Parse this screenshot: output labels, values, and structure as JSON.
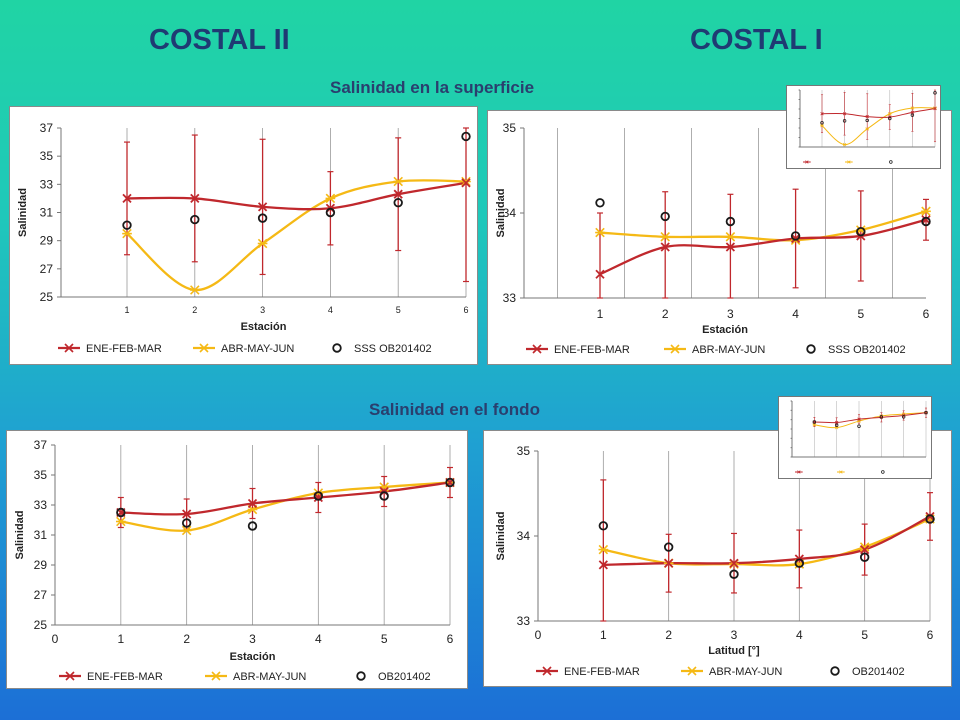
{
  "headings": {
    "left": "COSTAL II",
    "right": "COSTAL I",
    "surface": "Salinidad en la superficie",
    "bottom": "Salinidad en el fondo"
  },
  "colors": {
    "ene": "#c0282d",
    "abr": "#f5b915",
    "obs": "#1a1a1a",
    "errorbar": "#c0282d"
  },
  "chart_data": [
    {
      "type": "line",
      "xlabel": "Estación",
      "ylabel": "Salinidad",
      "x": [
        1,
        2,
        3,
        4,
        5,
        6
      ],
      "xticks": [
        "1",
        "2",
        "3",
        "4",
        "5",
        "6"
      ],
      "ylim": [
        25,
        37
      ],
      "yticks": [
        "25",
        "27",
        "29",
        "31",
        "33",
        "35",
        "37"
      ],
      "series": [
        {
          "name": "ENE-FEB-MAR",
          "values": [
            32.0,
            32.0,
            31.4,
            31.3,
            32.3,
            33.1
          ],
          "err": [
            4.0,
            4.5,
            4.8,
            2.6,
            4.0,
            7.0
          ]
        },
        {
          "name": "ABR-MAY-JUN",
          "values": [
            29.5,
            25.5,
            28.8,
            32.0,
            33.2,
            33.2
          ]
        },
        {
          "name": "SSS OB201402",
          "values": [
            30.1,
            30.5,
            30.6,
            31.0,
            31.7,
            36.4
          ]
        }
      ]
    },
    {
      "type": "line",
      "xlabel": "Estación",
      "ylabel": "Salinidad",
      "x": [
        1,
        2,
        3,
        4,
        5,
        6
      ],
      "xticks": [
        "1",
        "2",
        "3",
        "4",
        "5",
        "6"
      ],
      "ylim": [
        33,
        35
      ],
      "yticks": [
        "33",
        "34",
        "35"
      ],
      "series": [
        {
          "name": "ENE-FEB-MAR",
          "values": [
            33.28,
            33.6,
            33.6,
            33.7,
            33.73,
            33.92
          ],
          "err": [
            0.72,
            0.65,
            0.62,
            0.58,
            0.53,
            0.24
          ]
        },
        {
          "name": "ABR-MAY-JUN",
          "values": [
            33.77,
            33.72,
            33.72,
            33.68,
            33.8,
            34.02
          ]
        },
        {
          "name": "SSS OB201402",
          "values": [
            34.12,
            33.96,
            33.9,
            33.73,
            33.78,
            33.9
          ]
        }
      ]
    },
    {
      "type": "line",
      "xlabel": "Estación",
      "ylabel": "Salinidad",
      "x": [
        1,
        2,
        3,
        4,
        5,
        6
      ],
      "xticks": [
        "0",
        "1",
        "2",
        "3",
        "4",
        "5",
        "6"
      ],
      "ylim": [
        25,
        37
      ],
      "yticks": [
        "25",
        "27",
        "29",
        "31",
        "33",
        "35",
        "37"
      ],
      "series": [
        {
          "name": "ENE-FEB-MAR",
          "values": [
            32.5,
            32.4,
            33.1,
            33.5,
            33.9,
            34.5
          ],
          "err": [
            1.0,
            1.0,
            1.0,
            1.0,
            1.0,
            1.0
          ]
        },
        {
          "name": "ABR-MAY-JUN",
          "values": [
            31.9,
            31.3,
            32.7,
            33.8,
            34.2,
            34.5
          ]
        },
        {
          "name": "OB201402",
          "values": [
            32.5,
            31.8,
            31.6,
            33.6,
            33.6,
            34.5
          ]
        }
      ]
    },
    {
      "type": "line",
      "xlabel": "Latitud [°]",
      "ylabel": "Salinidad",
      "x": [
        1,
        2,
        3,
        4,
        5,
        6
      ],
      "xticks": [
        "0",
        "1",
        "2",
        "3",
        "4",
        "5",
        "6"
      ],
      "ylim": [
        33,
        35
      ],
      "yticks": [
        "33",
        "34",
        "35"
      ],
      "series": [
        {
          "name": "ENE-FEB-MAR",
          "values": [
            33.66,
            33.68,
            33.68,
            33.73,
            33.84,
            34.23
          ],
          "err": [
            1.0,
            0.34,
            0.35,
            0.34,
            0.3,
            0.28
          ]
        },
        {
          "name": "ABR-MAY-JUN",
          "values": [
            33.84,
            33.68,
            33.67,
            33.67,
            33.87,
            34.2
          ]
        },
        {
          "name": "OB201402",
          "values": [
            34.12,
            33.87,
            33.55,
            33.68,
            33.75,
            34.2
          ]
        }
      ]
    }
  ]
}
